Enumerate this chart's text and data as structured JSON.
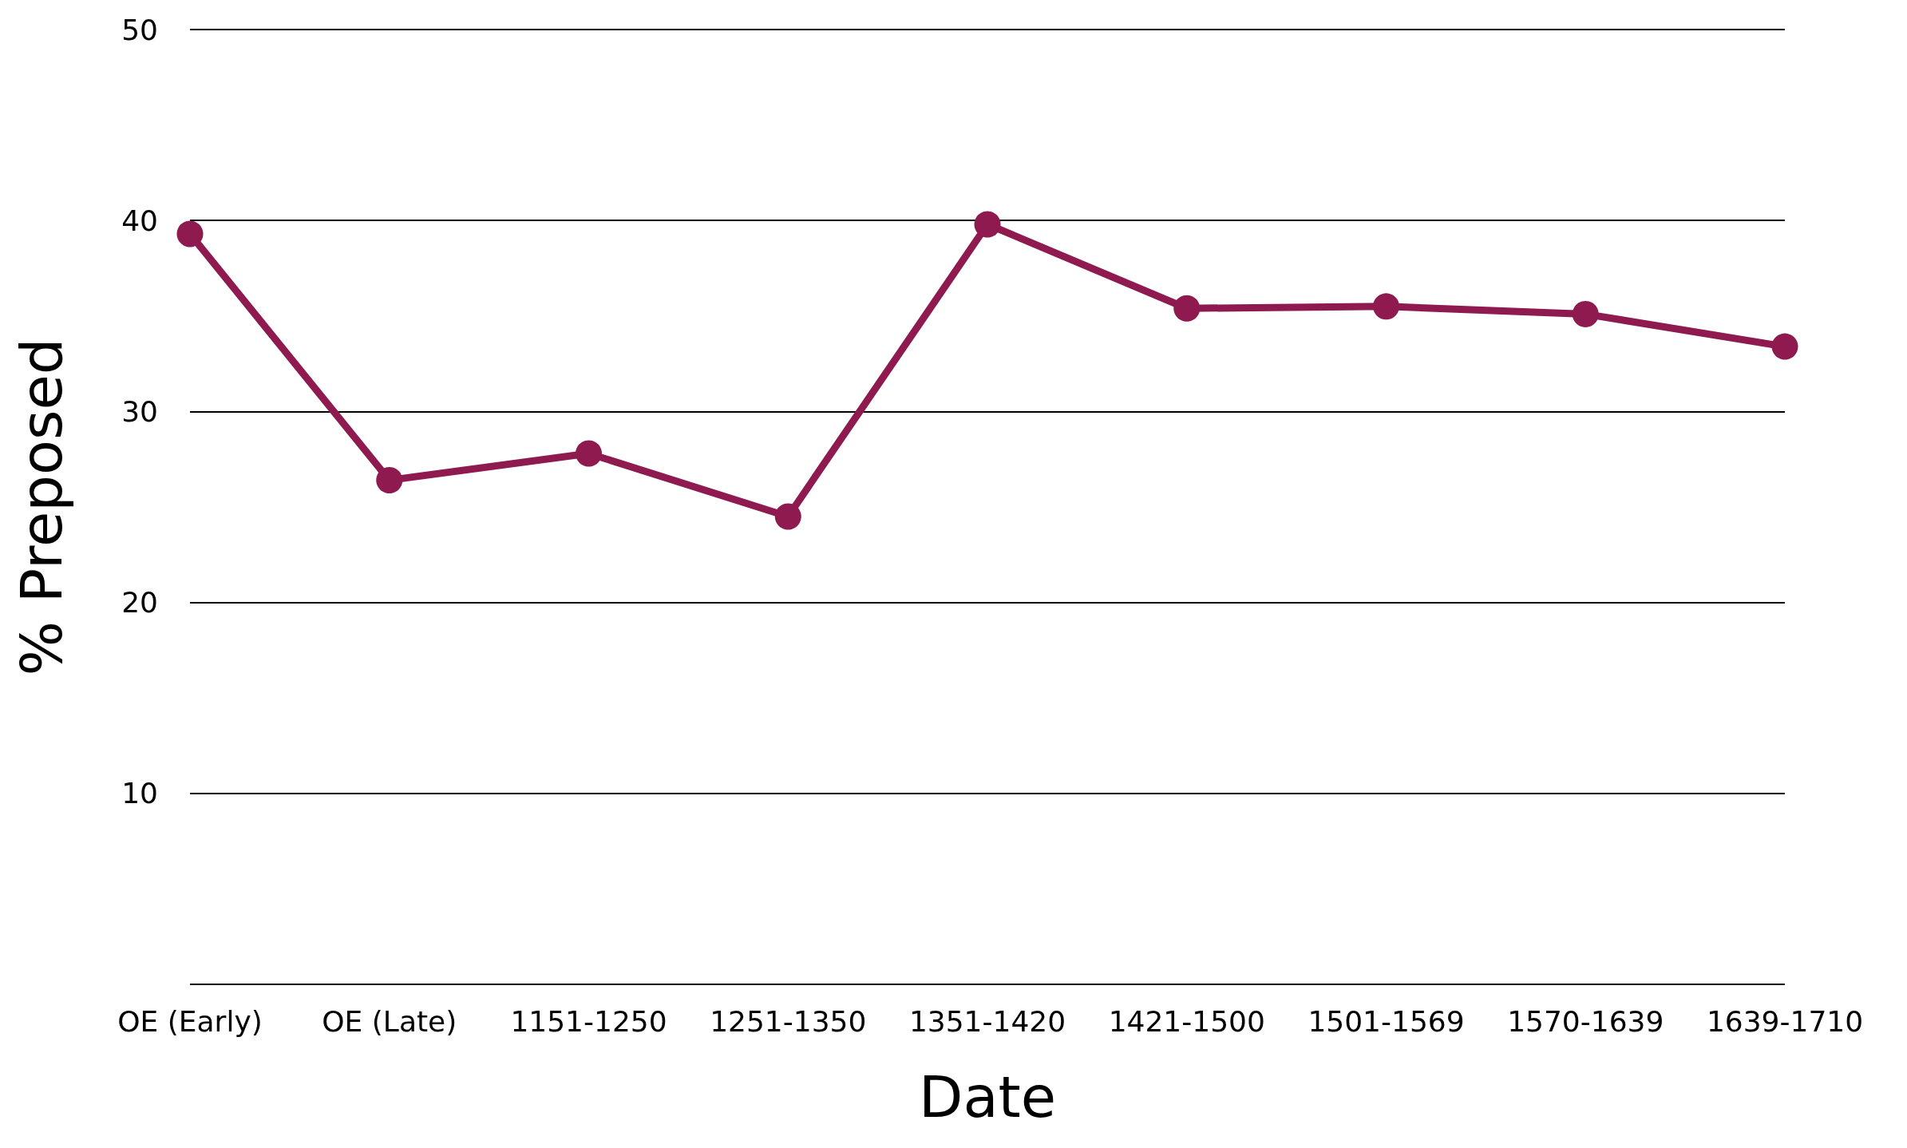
{
  "chart_data": {
    "type": "line",
    "xlabel": "Date",
    "ylabel": "% Preposed",
    "categories": [
      "OE (Early)",
      "OE (Late)",
      "1151-1250",
      "1251-1350",
      "1351-1420",
      "1421-1500",
      "1501-1569",
      "1570-1639",
      "1639-1710"
    ],
    "series": [
      {
        "color": "#8e1a4f",
        "values": [
          39.3,
          26.4,
          27.8,
          24.5,
          39.8,
          35.4,
          35.5,
          35.1,
          33.4
        ]
      }
    ],
    "ylim": [
      0,
      50
    ],
    "yticks": [
      {
        "value": 0,
        "label": null
      },
      10,
      20,
      30,
      40,
      50
    ],
    "grid": "y",
    "marker": "circle",
    "line_style": "solid"
  }
}
